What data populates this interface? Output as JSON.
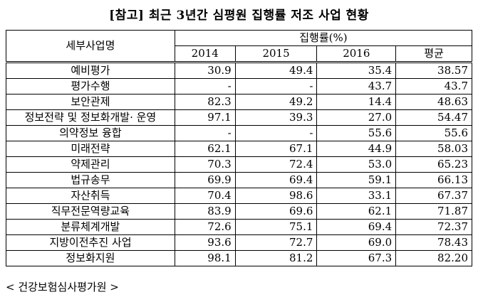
{
  "title": "[참고] 최근 3년간 심평원 집행률 저조 사업 현황",
  "table": {
    "name_header": "세부사업명",
    "group_header": "집행률(%)",
    "columns": [
      "2014",
      "2015",
      "2016",
      "평균"
    ],
    "rows": [
      [
        "예비평가",
        "30.9",
        "49.4",
        "35.4",
        "38.57"
      ],
      [
        "평가수행",
        "-",
        "-",
        "43.7",
        "43.7"
      ],
      [
        "보안관제",
        "82.3",
        "49.2",
        "14.4",
        "48.63"
      ],
      [
        "정보전략 및 정보화개발· 운영",
        "97.1",
        "39.3",
        "27.0",
        "54.47"
      ],
      [
        "의약정보 융합",
        "-",
        "-",
        "55.6",
        "55.6"
      ],
      [
        "미래전략",
        "62.1",
        "67.1",
        "44.9",
        "58.03"
      ],
      [
        "약제관리",
        "70.3",
        "72.4",
        "53.0",
        "65.23"
      ],
      [
        "법규송무",
        "69.9",
        "69.4",
        "59.1",
        "66.13"
      ],
      [
        "자산취득",
        "70.4",
        "98.6",
        "33.1",
        "67.37"
      ],
      [
        "직무전문역량교육",
        "83.9",
        "69.6",
        "62.1",
        "71.87"
      ],
      [
        "분류체계개발",
        "72.6",
        "75.1",
        "69.4",
        "72.37"
      ],
      [
        "지방이전추진 사업",
        "93.6",
        "72.7",
        "69.0",
        "78.43"
      ],
      [
        "정보화지원",
        "98.1",
        "81.2",
        "67.3",
        "82.20"
      ]
    ]
  },
  "footer": "< 건강보험심사평가원 >"
}
